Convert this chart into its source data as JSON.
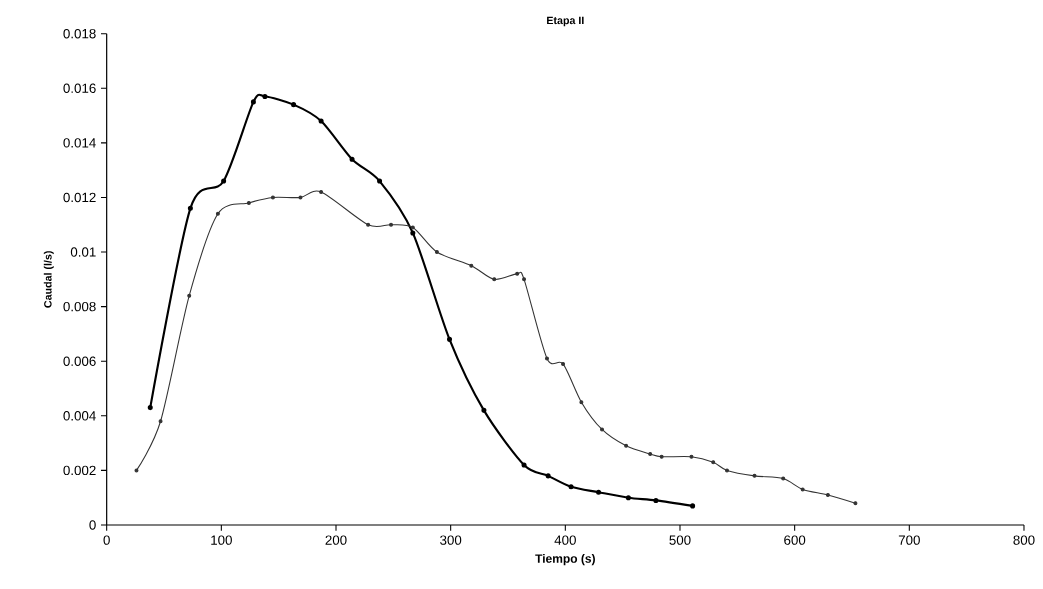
{
  "chart_data": {
    "type": "line",
    "title": "Etapa II",
    "xlabel": "Tiempo (s)",
    "ylabel": "Caudal  (l/s)",
    "xlim": [
      0,
      800
    ],
    "xticks": [
      0,
      100,
      200,
      300,
      400,
      500,
      600,
      700,
      800
    ],
    "ylim": [
      0,
      0.018
    ],
    "yticks": [
      0,
      0.002,
      0.004,
      0.006,
      0.008,
      0.01,
      0.012,
      0.014,
      0.016,
      0.018
    ],
    "grid": false,
    "marker": "circle",
    "line_style": "solid",
    "series": [
      {
        "color": "#000000",
        "x": [
          38,
          73,
          102,
          128,
          138,
          163,
          187,
          214,
          238,
          267,
          299,
          329,
          364,
          385,
          405,
          429,
          455,
          479,
          511
        ],
        "values": [
          0.0043,
          0.0116,
          0.0126,
          0.0155,
          0.0157,
          0.0154,
          0.0148,
          0.0134,
          0.0126,
          0.0107,
          0.0068,
          0.0042,
          0.0022,
          0.0018,
          0.0014,
          0.0012,
          0.001,
          0.0009,
          0.0007
        ]
      },
      {
        "color": "#333333",
        "x": [
          26,
          47,
          72,
          97,
          124,
          145,
          169,
          187,
          228,
          248,
          267,
          288,
          318,
          338,
          358,
          364,
          384,
          398,
          414,
          432,
          453,
          474,
          484,
          510,
          529,
          541,
          565,
          590,
          607,
          629,
          653
        ],
        "values": [
          0.002,
          0.0038,
          0.0084,
          0.0114,
          0.0118,
          0.012,
          0.012,
          0.0122,
          0.011,
          0.011,
          0.0109,
          0.01,
          0.0095,
          0.009,
          0.0092,
          0.009,
          0.0061,
          0.0059,
          0.0045,
          0.0035,
          0.0029,
          0.0026,
          0.0025,
          0.0025,
          0.0023,
          0.002,
          0.0018,
          0.0017,
          0.0013,
          0.0011,
          0.0008
        ]
      }
    ]
  }
}
